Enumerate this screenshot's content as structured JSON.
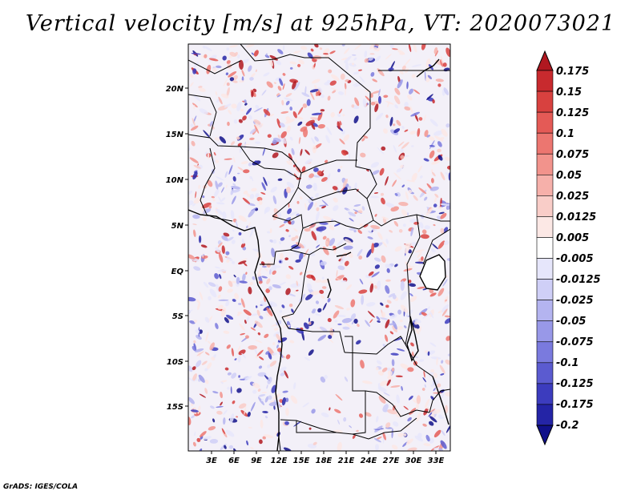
{
  "title": "Vertical velocity [m/s] at 925hPa, VT: 2020073021",
  "credit": "GrADS: IGES/COLA",
  "map": {
    "lat_labels": [
      "20N",
      "15N",
      "10N",
      "5N",
      "EQ",
      "5S",
      "10S",
      "15S"
    ],
    "lon_labels": [
      "3E",
      "6E",
      "9E",
      "12E",
      "15E",
      "18E",
      "21E",
      "24E",
      "27E",
      "30E",
      "33E"
    ]
  },
  "colorbar": {
    "labels": [
      "0.175",
      "0.15",
      "0.125",
      "0.1",
      "0.075",
      "0.05",
      "0.025",
      "0.0125",
      "0.005",
      "-0.005",
      "-0.0125",
      "-0.025",
      "-0.05",
      "-0.075",
      "-0.1",
      "-0.125",
      "-0.175",
      "-0.2"
    ],
    "colors": [
      "#b01820",
      "#c82a2e",
      "#d8413f",
      "#e45a56",
      "#ec7670",
      "#f2938c",
      "#f6b0aa",
      "#f9cdc8",
      "#fce8e5",
      "#ffffff",
      "#e6e6fb",
      "#cfcff7",
      "#b4b4f0",
      "#9898e8",
      "#7a7ade",
      "#5b5bd0",
      "#3c3cbe",
      "#2424a6",
      "#10108a"
    ]
  }
}
